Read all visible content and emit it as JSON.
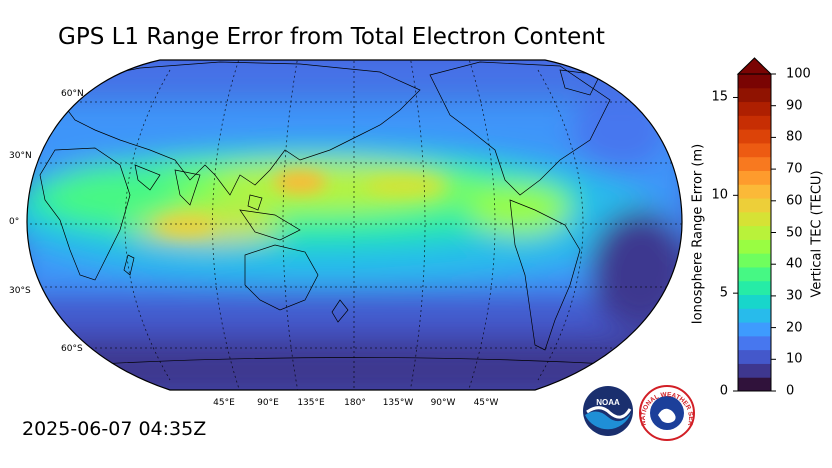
{
  "title": "GPS L1 Range Error from Total Electron Content",
  "timestamp": "2025-06-07 04:35Z",
  "lat_labels": [
    "60°N",
    "30°N",
    "0°",
    "30°S",
    "60°S"
  ],
  "lon_labels": [
    "45°E",
    "90°E",
    "135°E",
    "180°",
    "135°W",
    "90°W",
    "45°W"
  ],
  "colorbar": {
    "left_title": "Ionosphere Range Error (m)",
    "right_title": "Vertical TEC (TECU)",
    "left_ticks": [
      "15",
      "10",
      "5",
      "0"
    ],
    "right_ticks": [
      "100",
      "90",
      "80",
      "70",
      "60",
      "50",
      "40",
      "30",
      "20",
      "10",
      "0"
    ],
    "range_tecu": [
      0,
      100
    ],
    "range_m": [
      0,
      16.2
    ],
    "colors": [
      "#30123b",
      "#3e378f",
      "#4458cb",
      "#4777ef",
      "#3e9bfe",
      "#28bbeb",
      "#18d6cb",
      "#26eca6",
      "#46f884",
      "#6ffe5e",
      "#99fd42",
      "#b9f23a",
      "#d6e235",
      "#edcf39",
      "#fbb938",
      "#fe9b2d",
      "#f8791f",
      "#ed5b12",
      "#dc4308",
      "#c72e03",
      "#ae1f01",
      "#901301",
      "#7a0403"
    ]
  },
  "logos": {
    "noaa": "NOAA",
    "nws": "NATIONAL WEATHER SERVICE"
  }
}
